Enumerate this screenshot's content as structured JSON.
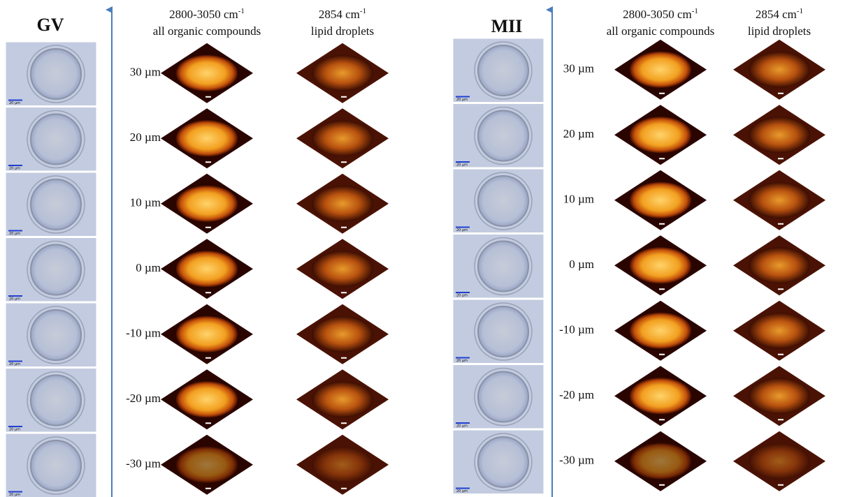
{
  "panels": [
    {
      "title": "GV",
      "columns": [
        {
          "wavenumber": "2800-3050 cm",
          "exponent": "-1",
          "label": "all organic compounds"
        },
        {
          "wavenumber": "2854 cm",
          "exponent": "-1",
          "label": "lipid droplets"
        }
      ],
      "rows": [
        "30 µm",
        "20 µm",
        "10 µm",
        "0 µm",
        "-10 µm",
        "-20 µm",
        "-30 µm"
      ],
      "scale_bar": "20 µm"
    },
    {
      "title": "MII",
      "columns": [
        {
          "wavenumber": "2800-3050 cm",
          "exponent": "-1",
          "label": "all organic compounds"
        },
        {
          "wavenumber": "2854 cm",
          "exponent": "-1",
          "label": "lipid droplets"
        }
      ],
      "rows": [
        "30 µm",
        "20 µm",
        "10 µm",
        "0 µm",
        "-10 µm",
        "-20 µm",
        "-30 µm"
      ],
      "scale_bar": "20 µm"
    }
  ]
}
